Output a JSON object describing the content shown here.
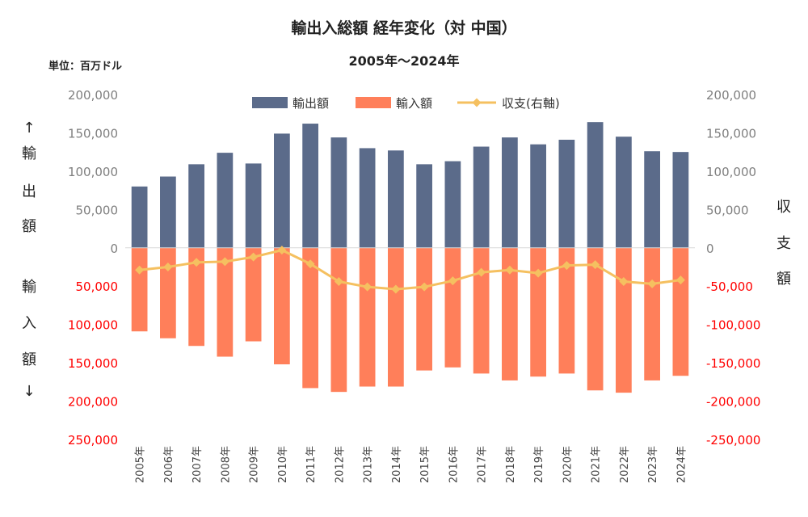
{
  "chart_data": {
    "type": "bar",
    "title": "輸出入総額 経年変化（対 中国）",
    "subtitle": "2005年～2024年",
    "unit_label": "単位：百万ドル",
    "left_axis_label": {
      "up_arrow": "↑",
      "export_chars": [
        "輸",
        "出",
        "額"
      ],
      "import_chars": [
        "輸",
        "入",
        "額"
      ],
      "down_arrow": "↓"
    },
    "right_axis_label_chars": [
      "収",
      "支",
      "額"
    ],
    "categories": [
      "2005年",
      "2006年",
      "2007年",
      "2008年",
      "2009年",
      "2010年",
      "2011年",
      "2012年",
      "2013年",
      "2014年",
      "2015年",
      "2016年",
      "2017年",
      "2018年",
      "2019年",
      "2020年",
      "2021年",
      "2022年",
      "2023年",
      "2024年"
    ],
    "series": [
      {
        "name": "輸出額",
        "kind": "bar",
        "color": "#5B6B8A",
        "values": [
          80000,
          93000,
          109000,
          124000,
          110000,
          149000,
          162000,
          144000,
          130000,
          127000,
          109000,
          113000,
          132000,
          144000,
          135000,
          141000,
          164000,
          145000,
          126000,
          125000
        ]
      },
      {
        "name": "輸入額",
        "kind": "bar",
        "color": "#FF7F5A",
        "values": [
          109000,
          118000,
          128000,
          142000,
          122000,
          152000,
          183000,
          188000,
          181000,
          181000,
          160000,
          156000,
          164000,
          173000,
          168000,
          164000,
          186000,
          189000,
          173000,
          167000
        ]
      },
      {
        "name": "収支(右軸)",
        "kind": "line",
        "color": "#F5C060",
        "values": [
          -29000,
          -25000,
          -19000,
          -18000,
          -12000,
          -3000,
          -21000,
          -44000,
          -51000,
          -54000,
          -51000,
          -43000,
          -32000,
          -29000,
          -33000,
          -23000,
          -22000,
          -44000,
          -47000,
          -42000
        ]
      }
    ],
    "left_axis": {
      "range": [
        -250000,
        200000
      ],
      "ticks": [
        200000,
        150000,
        100000,
        50000,
        0,
        -50000,
        -100000,
        -150000,
        -200000,
        -250000
      ],
      "tick_labels": [
        "200,000",
        "150,000",
        "100,000",
        "50,000",
        "0",
        "50,000",
        "100,000",
        "150,000",
        "200,000",
        "250,000"
      ],
      "positive_color": "#7F7F7F",
      "negative_color": "#FF0000"
    },
    "right_axis": {
      "range": [
        -250000,
        200000
      ],
      "ticks": [
        200000,
        150000,
        100000,
        50000,
        0,
        -50000,
        -100000,
        -150000,
        -200000,
        -250000
      ],
      "tick_labels": [
        "200,000",
        "150,000",
        "100,000",
        "50,000",
        "0",
        "-50,000",
        "-100,000",
        "-150,000",
        "-200,000",
        "-250,000"
      ],
      "positive_color": "#7F7F7F",
      "negative_color": "#FF0000"
    },
    "legend_position": "top-center",
    "grid": false
  }
}
